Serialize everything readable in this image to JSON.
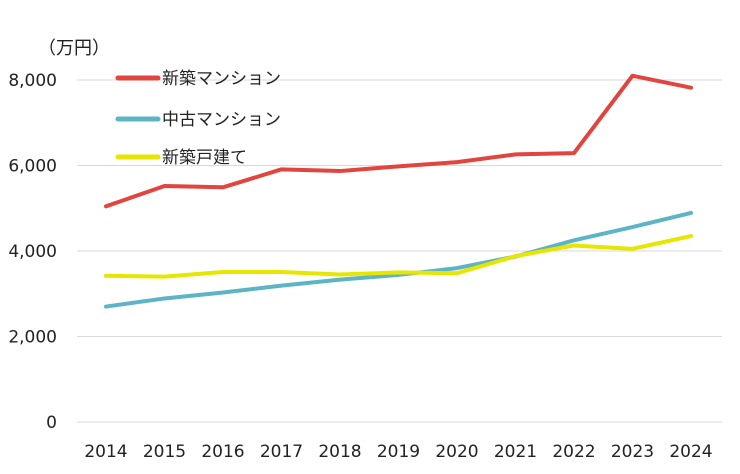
{
  "chart_data": {
    "type": "line",
    "y_unit": "（万円）",
    "categories": [
      "2014",
      "2015",
      "2016",
      "2017",
      "2018",
      "2019",
      "2020",
      "2021",
      "2022",
      "2023",
      "2024"
    ],
    "y_ticks": [
      "0",
      "2,000",
      "4,000",
      "6,000",
      "8,000"
    ],
    "ylim": [
      0,
      8000
    ],
    "grid": true,
    "legend_position": "top-left",
    "series": [
      {
        "name": "新築マンション",
        "color": "#e0453f",
        "values": [
          5045,
          5520,
          5490,
          5910,
          5870,
          5980,
          6080,
          6260,
          6290,
          8100,
          7820
        ]
      },
      {
        "name": "中古マンション",
        "color": "#5db4c4",
        "values": [
          2700,
          2890,
          3030,
          3190,
          3330,
          3440,
          3600,
          3870,
          4250,
          4560,
          4890
        ]
      },
      {
        "name": "新築戸建て",
        "color": "#e6e600",
        "values": [
          3420,
          3400,
          3510,
          3510,
          3450,
          3500,
          3480,
          3880,
          4130,
          4050,
          4350
        ]
      }
    ]
  }
}
